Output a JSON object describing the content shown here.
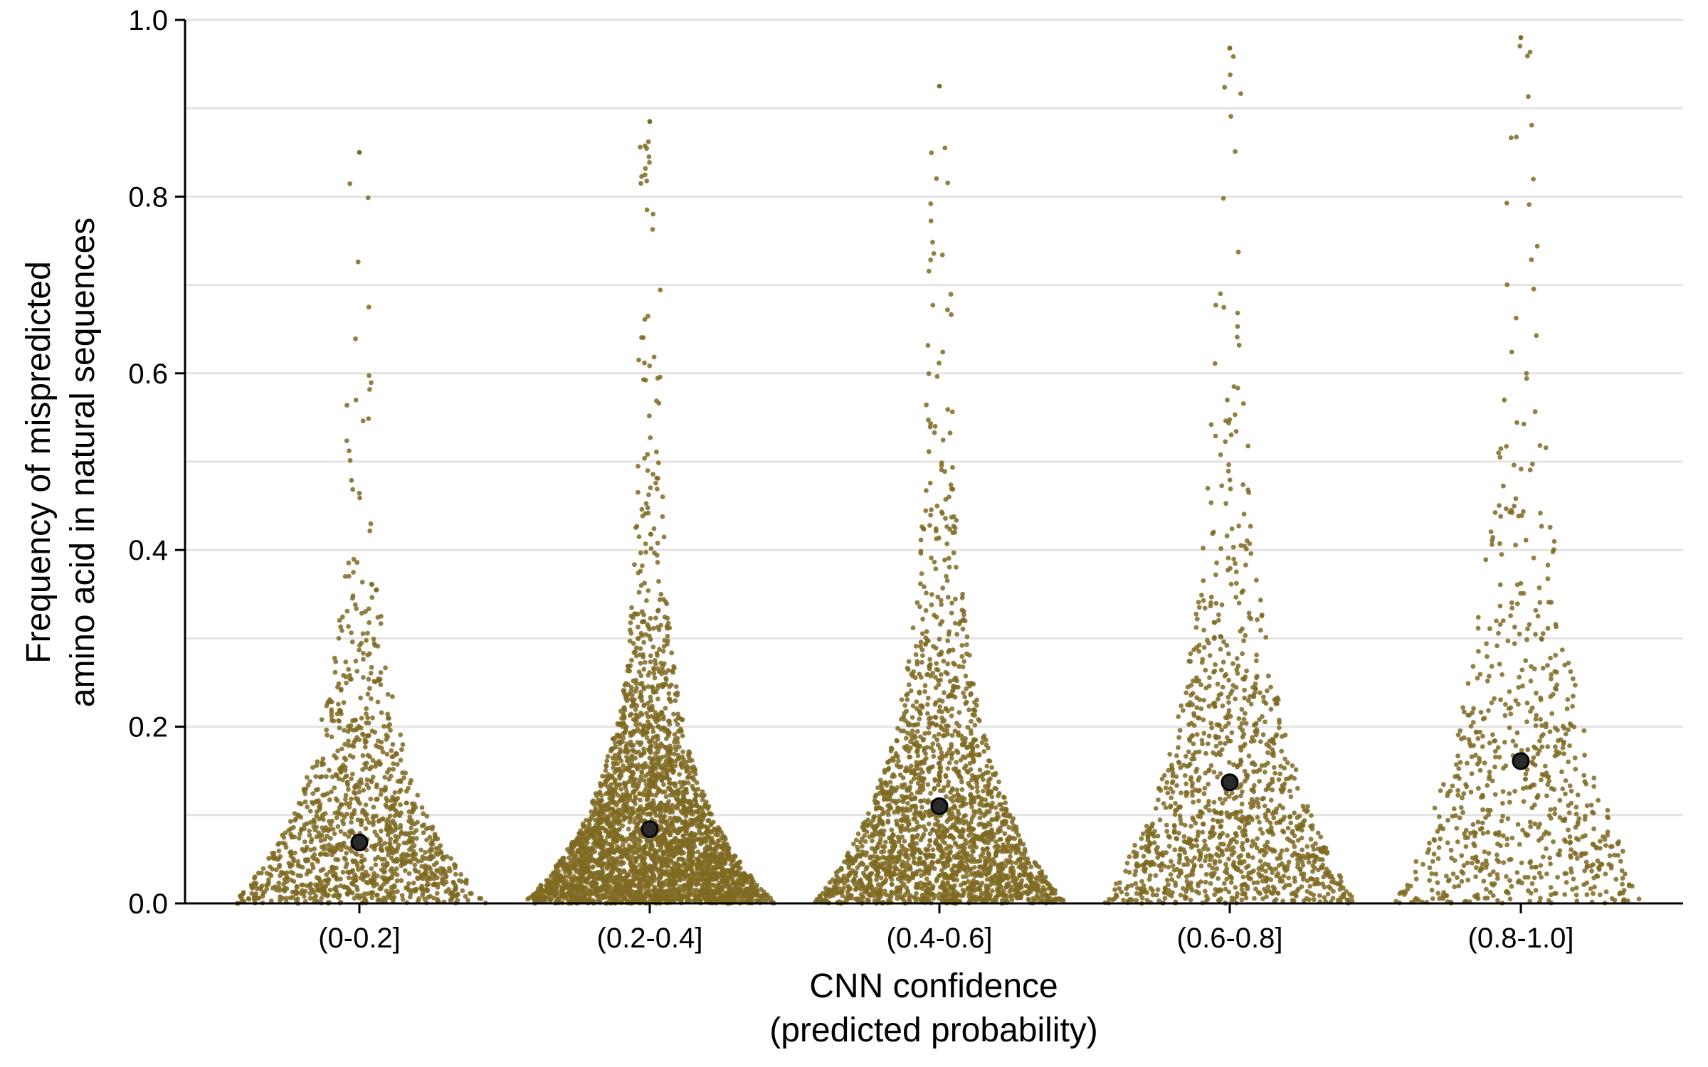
{
  "chart_data": {
    "type": "scatter",
    "subtype": "beeswarm",
    "xlabel_line1": "CNN confidence",
    "xlabel_line2": "(predicted probability)",
    "ylabel_line1": "Frequency of mispredicted",
    "ylabel_line2": "amino acid in natural sequences",
    "ylim": [
      0,
      1
    ],
    "yticks": [
      "0.0",
      "0.2",
      "0.4",
      "0.6",
      "0.8",
      "1.0"
    ],
    "categories": [
      "(0-0.2]",
      "(0.2-0.4]",
      "(0.4-0.6]",
      "(0.6-0.8]",
      "(0.8-1.0]"
    ],
    "means": [
      0.069,
      0.084,
      0.11,
      0.137,
      0.161
    ],
    "point_counts": [
      1200,
      3200,
      2100,
      1200,
      700
    ],
    "max_values": [
      0.85,
      0.885,
      0.925,
      0.968,
      0.98
    ],
    "spread": [
      0.09,
      0.08,
      0.1,
      0.13,
      0.16
    ],
    "grid": true,
    "legend": "none",
    "colors": {
      "points": "#7f6a22",
      "mean": "#1a1a1a",
      "grid": "#e3e3e3",
      "axis": "#000000"
    }
  }
}
